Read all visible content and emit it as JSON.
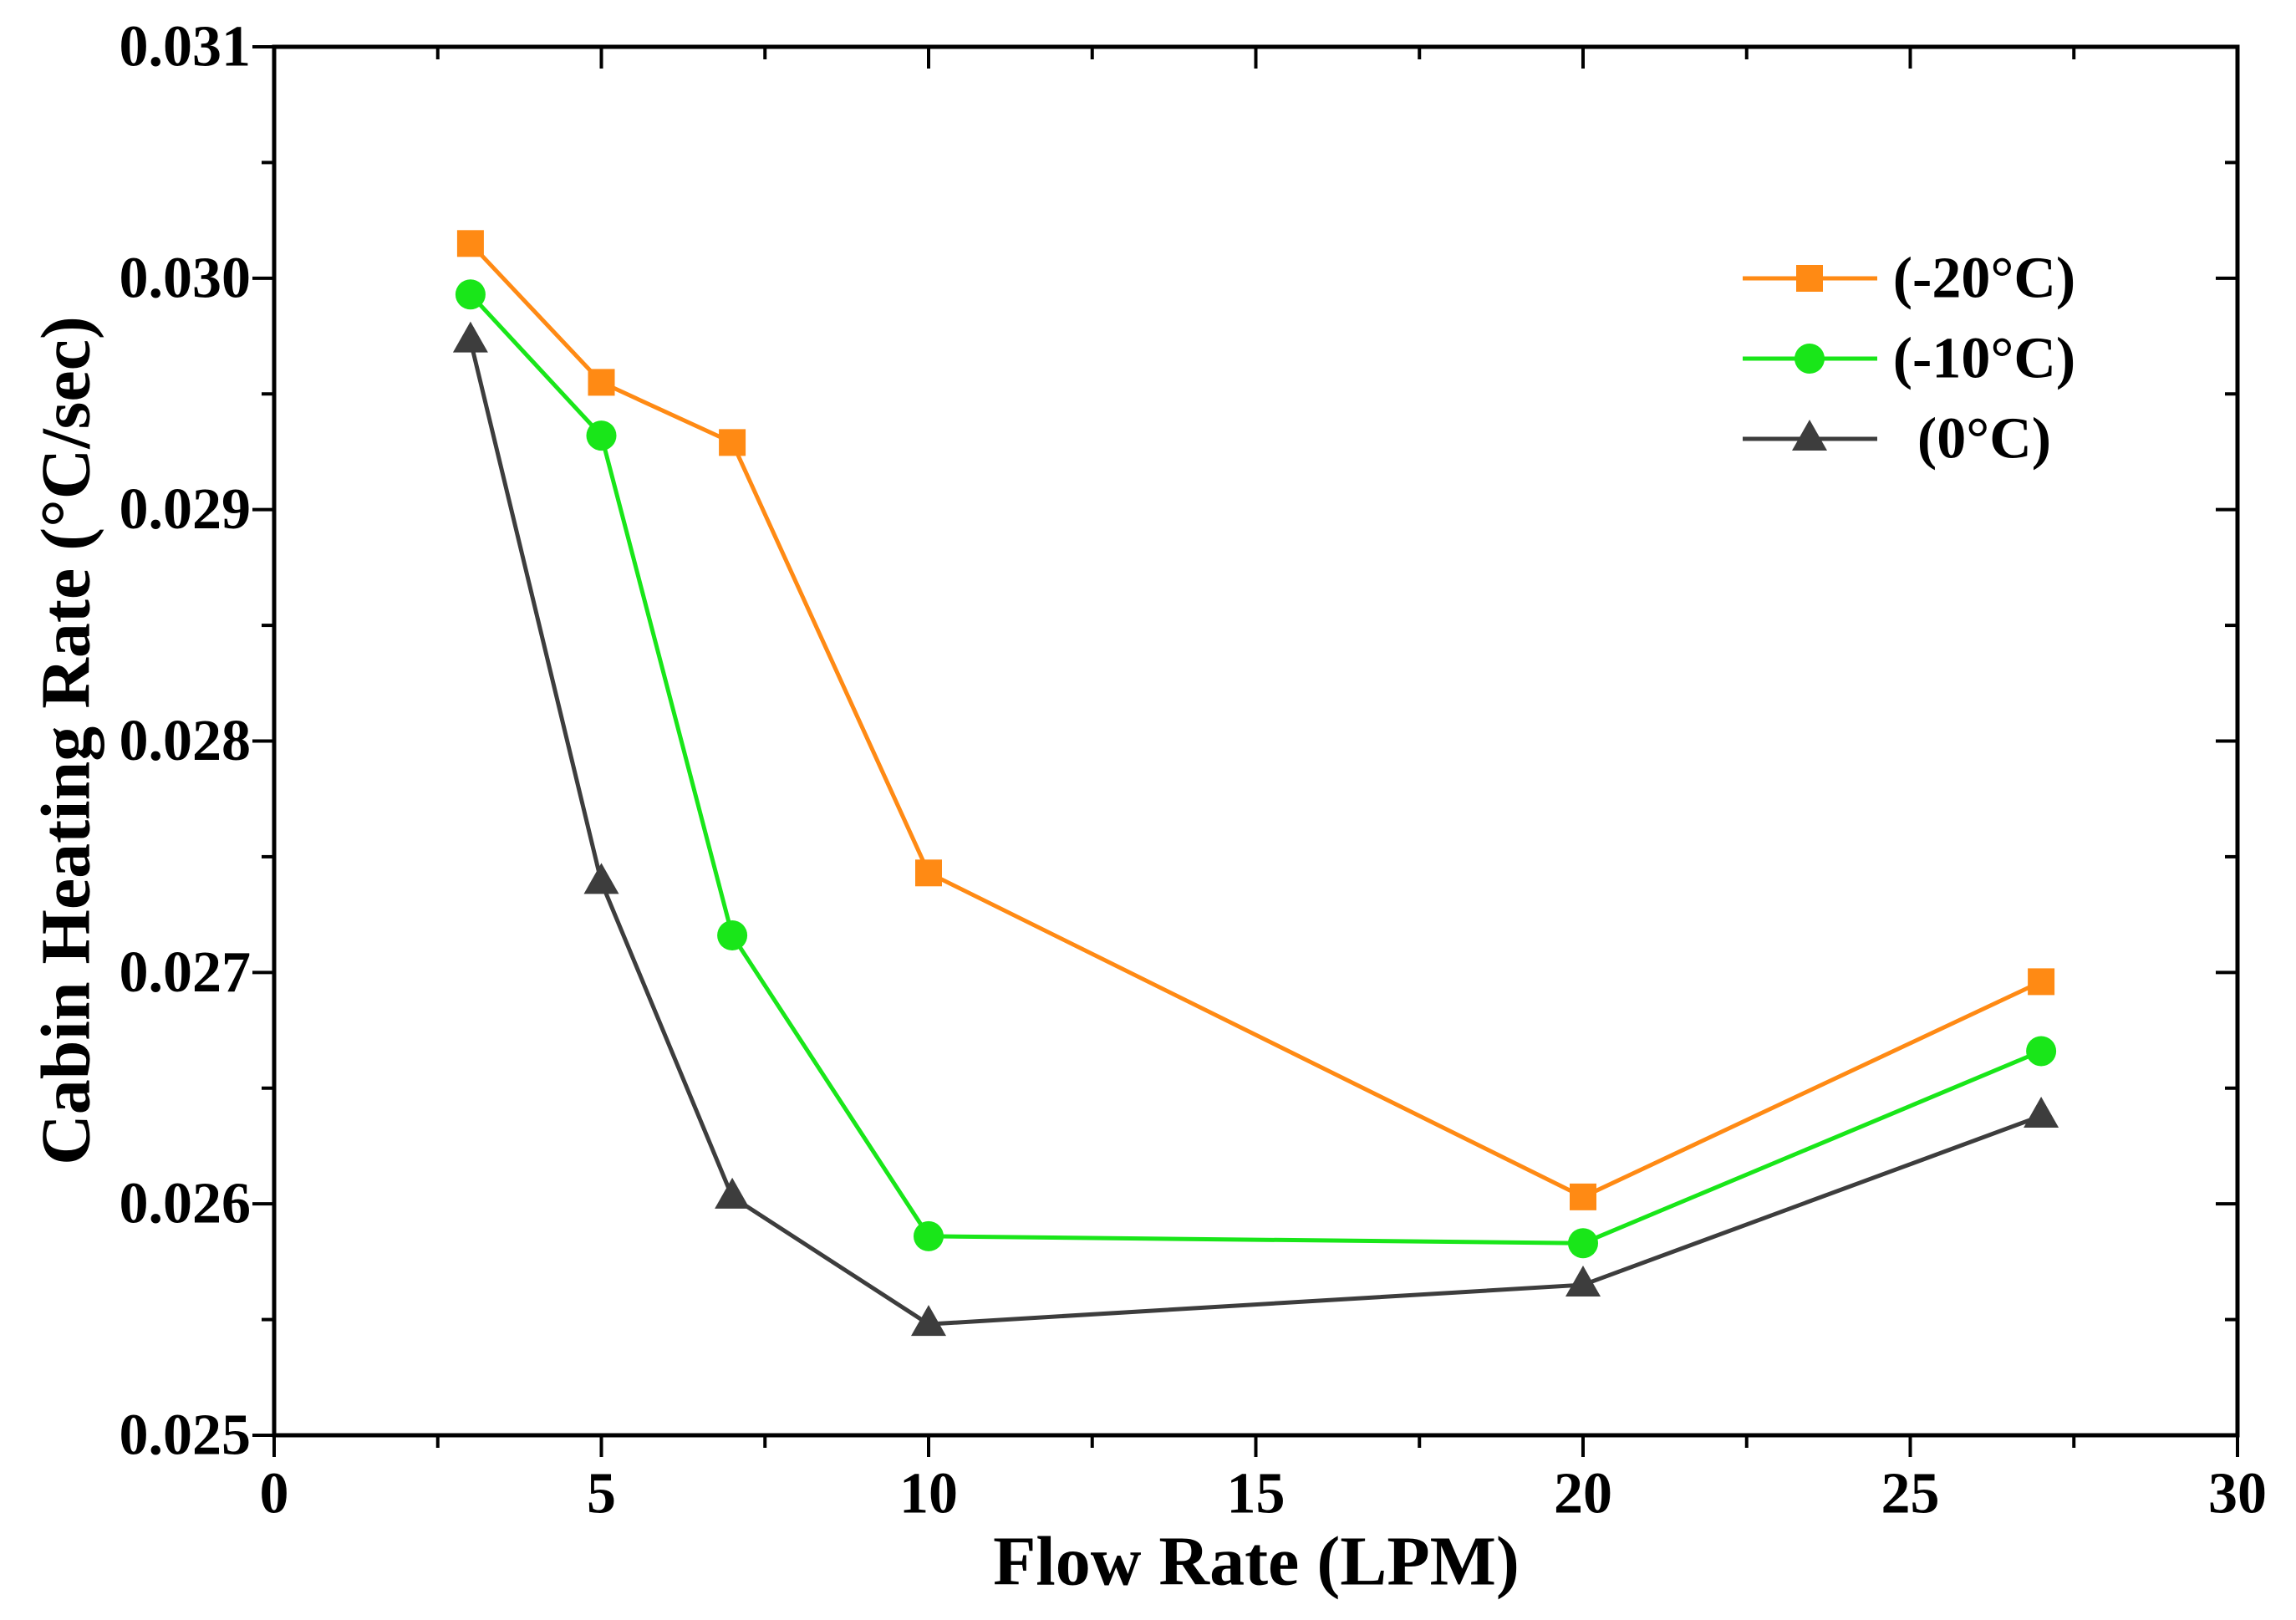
{
  "chart_data": {
    "type": "line",
    "title": "",
    "xlabel": "Flow Rate (LPM)",
    "ylabel": "Cabin Heating Rate (°C/sec)",
    "xlim": [
      0,
      30
    ],
    "ylim": [
      0.025,
      0.031
    ],
    "xticks": [
      0,
      5,
      10,
      15,
      20,
      25,
      30
    ],
    "xtick_labels": [
      "0",
      "5",
      "10",
      "15",
      "20",
      "25",
      "30"
    ],
    "yticks": [
      0.025,
      0.026,
      0.027,
      0.028,
      0.029,
      0.03,
      0.031
    ],
    "ytick_labels": [
      "0.025",
      "0.026",
      "0.027",
      "0.028",
      "0.029",
      "0.030",
      "0.031"
    ],
    "grid": false,
    "legend_position": "top-right",
    "x": [
      3,
      5,
      7,
      10,
      20,
      27
    ],
    "series": [
      {
        "name": "(-20°C)",
        "marker": "square",
        "color": "#ff8a14",
        "values": [
          0.03015,
          0.02955,
          0.02929,
          0.02743,
          0.02603,
          0.02696
        ]
      },
      {
        "name": "(-10°C)",
        "marker": "circle",
        "color": "#19e619",
        "values": [
          0.02993,
          0.02932,
          0.02716,
          0.02586,
          0.02583,
          0.02666
        ]
      },
      {
        "name": "(0°C)",
        "marker": "triangle",
        "color": "#3d3d3d",
        "values": [
          0.02973,
          0.02739,
          0.02603,
          0.02548,
          0.02565,
          0.02638
        ]
      }
    ]
  }
}
